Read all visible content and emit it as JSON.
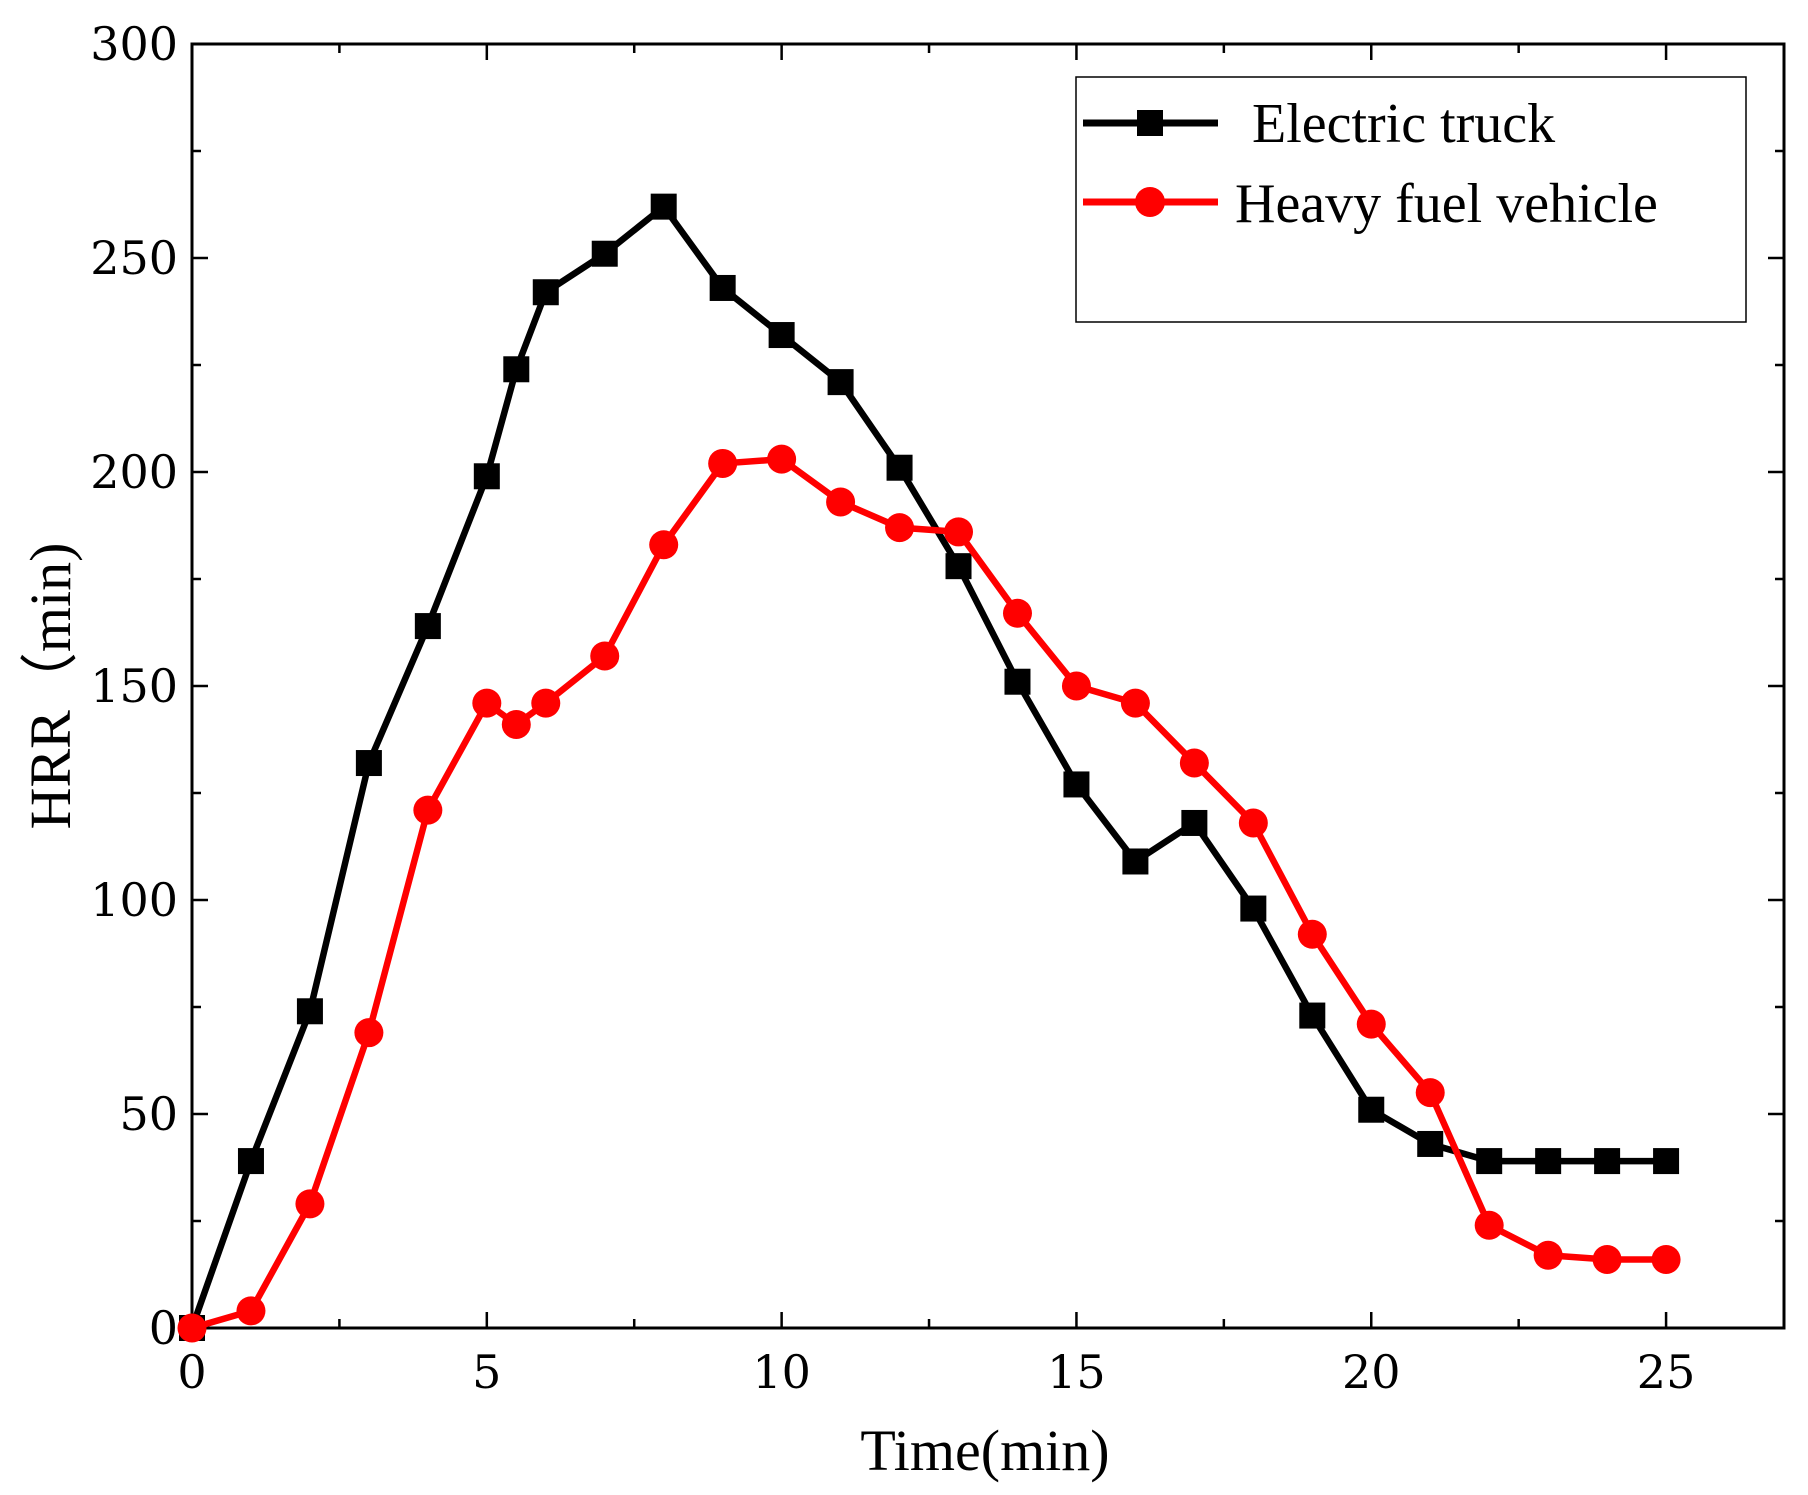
{
  "chart_data": {
    "type": "line",
    "title": "",
    "xlabel": "Time(min)",
    "ylabel": "HRR（min)",
    "xlim": [
      0,
      27
    ],
    "ylim": [
      0,
      300
    ],
    "xticks": [
      0,
      5,
      10,
      15,
      20,
      25
    ],
    "yticks": [
      0,
      50,
      100,
      150,
      200,
      250,
      300
    ],
    "xtick_labels": [
      "0",
      "5",
      "10",
      "15",
      "20",
      "25"
    ],
    "ytick_labels": [
      "0",
      "50",
      "100",
      "150",
      "200",
      "250",
      "300"
    ],
    "grid": false,
    "legend_position": "top-right",
    "series": [
      {
        "name": "Electric truck",
        "color": "#000000",
        "marker": "square",
        "x": [
          0,
          1,
          2,
          3,
          4,
          5,
          5.5,
          6,
          7,
          8,
          9,
          10,
          11,
          12,
          13,
          14,
          15,
          16,
          17,
          18,
          19,
          20,
          21,
          22,
          23,
          24,
          25
        ],
        "y": [
          0,
          39,
          74,
          132,
          164,
          199,
          224,
          242,
          251,
          262,
          243,
          232,
          221,
          201,
          178,
          151,
          127,
          109,
          118,
          98,
          73,
          51,
          43,
          39,
          39,
          39,
          39
        ]
      },
      {
        "name": "Heavy fuel vehicle",
        "color": "#ff0000",
        "marker": "circle",
        "x": [
          0,
          1,
          2,
          3,
          4,
          5,
          5.5,
          6,
          7,
          8,
          9,
          10,
          11,
          12,
          13,
          14,
          15,
          16,
          17,
          18,
          19,
          20,
          21,
          22,
          23,
          24,
          25
        ],
        "y": [
          0,
          4,
          29,
          69,
          121,
          146,
          141,
          146,
          157,
          183,
          202,
          203,
          193,
          187,
          186,
          167,
          150,
          146,
          132,
          118,
          92,
          71,
          55,
          24,
          17,
          16,
          16
        ]
      }
    ]
  }
}
